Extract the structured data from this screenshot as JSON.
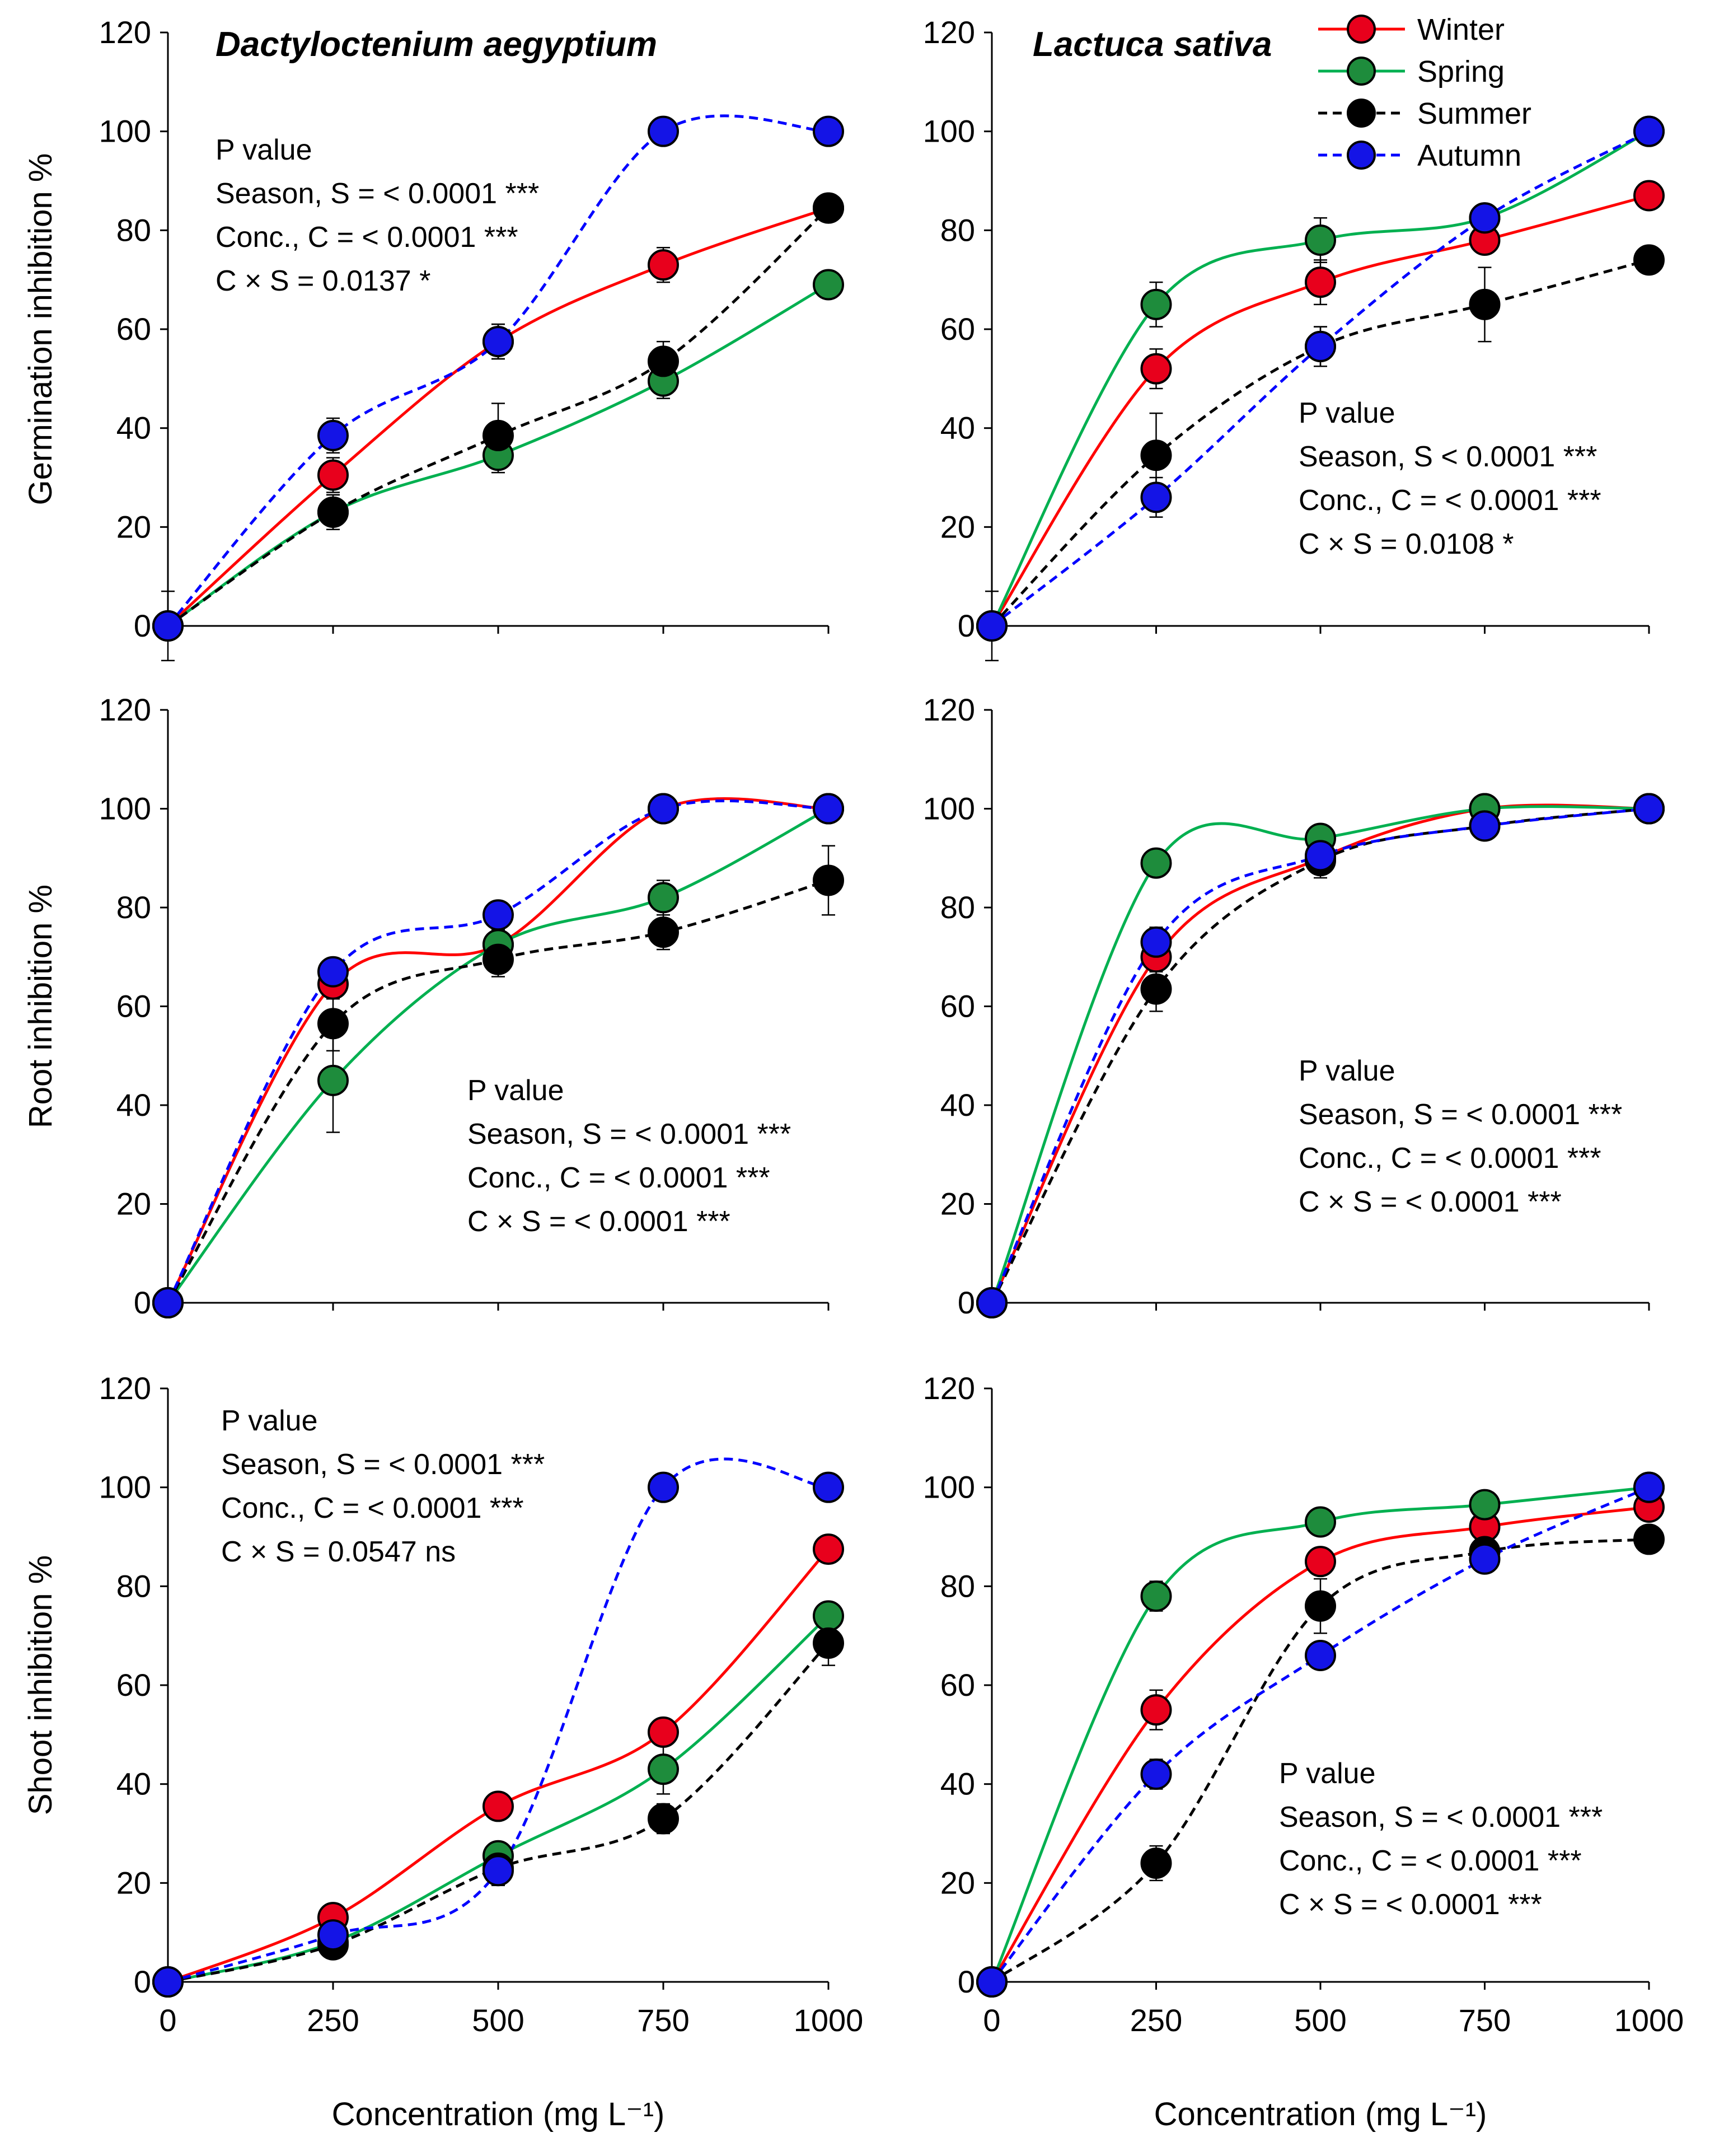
{
  "series_styles": [
    {
      "name": "Winter",
      "color": "#FF0000",
      "dashed": false
    },
    {
      "name": "Spring",
      "color": "#00B050",
      "dashed": false
    },
    {
      "name": "Summer",
      "color": "#000000",
      "dashed": true
    },
    {
      "name": "Autumn",
      "color": "#0000FF",
      "dashed": true
    }
  ],
  "marker_fills": {
    "Winter": "#E8001C",
    "Spring": "#1E8C3C",
    "Summer": "#000000",
    "Autumn": "#1414E6"
  },
  "x_axis_label": "Concentration (mg L⁻¹)",
  "chart_data": [
    {
      "type": "line",
      "title": "Dactyloctenium aegyptium",
      "ylabel": "Germination inhibition %",
      "xlabel": "",
      "x": [
        0,
        250,
        500,
        750,
        1000
      ],
      "xticks": [
        "0",
        "250",
        "500",
        "750",
        "1000"
      ],
      "ylim": [
        0,
        120
      ],
      "yticks": [
        "0",
        "20",
        "40",
        "60",
        "80",
        "100",
        "120"
      ],
      "series": [
        {
          "name": "Winter",
          "values": [
            0,
            30.5,
            57.5,
            73,
            84.5
          ],
          "err": [
            7,
            3.5,
            3.5,
            3.5,
            0
          ]
        },
        {
          "name": "Spring",
          "values": [
            0,
            23,
            34.5,
            49.5,
            69
          ],
          "err": [
            0,
            3.5,
            3.5,
            3.5,
            0
          ]
        },
        {
          "name": "Summer",
          "values": [
            0,
            23,
            38.5,
            53.5,
            84.5
          ],
          "err": [
            0,
            3.5,
            6.5,
            4,
            0
          ]
        },
        {
          "name": "Autumn",
          "values": [
            0,
            38.5,
            57.5,
            100,
            100
          ],
          "err": [
            0,
            3.5,
            3.5,
            0,
            0
          ]
        }
      ],
      "pvalue": [
        "P value",
        "Season, S = < 0.0001 ***",
        "Conc., C = < 0.0001 ***",
        "C × S = 0.0137 *"
      ]
    },
    {
      "type": "line",
      "title": "Lactuca sativa",
      "ylabel": "",
      "xlabel": "",
      "x": [
        0,
        250,
        500,
        750,
        1000
      ],
      "xticks": [
        "0",
        "250",
        "500",
        "750",
        "1000"
      ],
      "ylim": [
        0,
        120
      ],
      "yticks": [
        "0",
        "20",
        "40",
        "60",
        "80",
        "100",
        "120"
      ],
      "series": [
        {
          "name": "Winter",
          "values": [
            0,
            52,
            69.5,
            78,
            87
          ],
          "err": [
            7,
            4,
            4.5,
            0,
            0
          ]
        },
        {
          "name": "Spring",
          "values": [
            0,
            65,
            78,
            82.5,
            100
          ],
          "err": [
            0,
            4.5,
            4.5,
            0,
            0
          ]
        },
        {
          "name": "Summer",
          "values": [
            0,
            34.5,
            56.5,
            65,
            74
          ],
          "err": [
            0,
            8.5,
            4,
            7.5,
            0
          ]
        },
        {
          "name": "Autumn",
          "values": [
            0,
            26,
            56.5,
            82.5,
            100
          ],
          "err": [
            0,
            4,
            4,
            0,
            0
          ]
        }
      ],
      "pvalue": [
        "P value",
        "Season, S < 0.0001 ***",
        "Conc., C = < 0.0001 ***",
        "C × S = 0.0108 *"
      ],
      "legend": [
        "Winter",
        "Spring",
        "Summer",
        "Autumn"
      ]
    },
    {
      "type": "line",
      "title": "",
      "ylabel": "Root inhibition %",
      "xlabel": "",
      "x": [
        0,
        250,
        500,
        750,
        1000
      ],
      "xticks": [
        "0",
        "250",
        "500",
        "750",
        "1000"
      ],
      "ylim": [
        0,
        120
      ],
      "yticks": [
        "0",
        "20",
        "40",
        "60",
        "80",
        "100",
        "120"
      ],
      "series": [
        {
          "name": "Winter",
          "values": [
            0,
            64.5,
            72.5,
            100,
            100
          ],
          "err": [
            0,
            3,
            3,
            0,
            0
          ]
        },
        {
          "name": "Spring",
          "values": [
            0,
            45,
            72.5,
            82,
            100
          ],
          "err": [
            0,
            10.5,
            3.5,
            3.5,
            0
          ]
        },
        {
          "name": "Summer",
          "values": [
            0,
            56.5,
            69.5,
            75,
            85.5
          ],
          "err": [
            0,
            5.5,
            3.5,
            3.5,
            7
          ]
        },
        {
          "name": "Autumn",
          "values": [
            0,
            67,
            78.5,
            100,
            100
          ],
          "err": [
            0,
            0,
            0,
            0,
            0
          ]
        }
      ],
      "pvalue": [
        "P value",
        "Season, S = < 0.0001 ***",
        "Conc., C = < 0.0001 ***",
        "C × S = < 0.0001 ***"
      ]
    },
    {
      "type": "line",
      "title": "",
      "ylabel": "",
      "xlabel": "",
      "x": [
        0,
        250,
        500,
        750,
        1000
      ],
      "xticks": [
        "0",
        "250",
        "500",
        "750",
        "1000"
      ],
      "ylim": [
        0,
        120
      ],
      "yticks": [
        "0",
        "20",
        "40",
        "60",
        "80",
        "100",
        "120"
      ],
      "series": [
        {
          "name": "Winter",
          "values": [
            0,
            70,
            90,
            100,
            100
          ],
          "err": [
            0,
            3,
            3,
            0,
            0
          ]
        },
        {
          "name": "Spring",
          "values": [
            0,
            89,
            94,
            100,
            100
          ],
          "err": [
            0,
            0,
            0,
            0,
            0
          ]
        },
        {
          "name": "Summer",
          "values": [
            0,
            63.5,
            89.5,
            96.5,
            100
          ],
          "err": [
            0,
            4.5,
            3.5,
            0,
            0
          ]
        },
        {
          "name": "Autumn",
          "values": [
            0,
            73,
            90.5,
            96.5,
            100
          ],
          "err": [
            0,
            3,
            0,
            0,
            0
          ]
        }
      ],
      "pvalue": [
        "P value",
        "Season, S = < 0.0001 ***",
        "Conc., C = < 0.0001 ***",
        "C × S = < 0.0001 ***"
      ]
    },
    {
      "type": "line",
      "title": "",
      "ylabel": "Shoot inhibition %",
      "xlabel": "Concentration (mg L⁻¹)",
      "x": [
        0,
        250,
        500,
        750,
        1000
      ],
      "xticks": [
        "0",
        "250",
        "500",
        "750",
        "1000"
      ],
      "ylim": [
        0,
        120
      ],
      "yticks": [
        "0",
        "20",
        "40",
        "60",
        "80",
        "100",
        "120"
      ],
      "series": [
        {
          "name": "Winter",
          "values": [
            0,
            13,
            35.5,
            50.5,
            87.5
          ],
          "err": [
            0,
            0,
            2.5,
            2.5,
            2.5
          ]
        },
        {
          "name": "Spring",
          "values": [
            0,
            8,
            25.5,
            43,
            74
          ],
          "err": [
            0,
            0,
            2.5,
            5,
            2.5
          ]
        },
        {
          "name": "Summer",
          "values": [
            0,
            7.5,
            23,
            33,
            68.5
          ],
          "err": [
            0,
            0,
            3.5,
            3,
            4.5
          ]
        },
        {
          "name": "Autumn",
          "values": [
            0,
            9.5,
            22.5,
            100,
            100
          ],
          "err": [
            0,
            0,
            0,
            0,
            0
          ]
        }
      ],
      "pvalue": [
        "P value",
        "Season, S = < 0.0001 ***",
        "Conc., C = < 0.0001 ***",
        "C × S = 0.0547 ns"
      ]
    },
    {
      "type": "line",
      "title": "",
      "ylabel": "",
      "xlabel": "Concentration (mg L⁻¹)",
      "x": [
        0,
        250,
        500,
        750,
        1000
      ],
      "xticks": [
        "0",
        "250",
        "500",
        "750",
        "1000"
      ],
      "ylim": [
        0,
        120
      ],
      "yticks": [
        "0",
        "20",
        "40",
        "60",
        "80",
        "100",
        "120"
      ],
      "series": [
        {
          "name": "Winter",
          "values": [
            0,
            55,
            85,
            92,
            96
          ],
          "err": [
            0,
            4,
            2,
            0,
            0
          ]
        },
        {
          "name": "Spring",
          "values": [
            0,
            78,
            93,
            96.5,
            100
          ],
          "err": [
            0,
            3,
            0,
            0,
            0
          ]
        },
        {
          "name": "Summer",
          "values": [
            0,
            24,
            76,
            87,
            89.5
          ],
          "err": [
            0,
            3.5,
            5.5,
            0,
            0
          ]
        },
        {
          "name": "Autumn",
          "values": [
            0,
            42,
            66,
            85.5,
            100
          ],
          "err": [
            0,
            3,
            2,
            0,
            0
          ]
        }
      ],
      "pvalue": [
        "P value",
        "Season, S = < 0.0001 ***",
        "Conc., C = < 0.0001 ***",
        "C × S = < 0.0001 ***"
      ]
    }
  ]
}
